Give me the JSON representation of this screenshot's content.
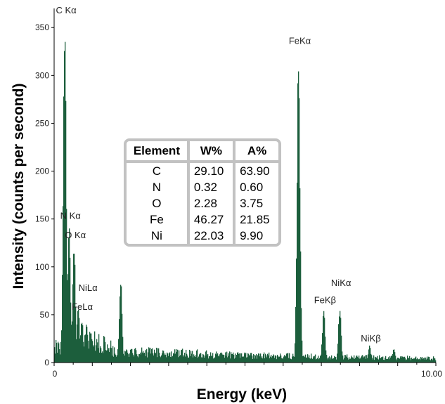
{
  "chart_data": {
    "type": "bar",
    "xlabel": "Energy (keV)",
    "ylabel": "Intensity (counts per second)",
    "xlim": [
      0,
      10
    ],
    "ylim": [
      0,
      370
    ],
    "x_ticks": [
      "0",
      "10.00"
    ],
    "y_ticks": [
      0,
      50,
      100,
      150,
      200,
      250,
      300,
      350
    ],
    "bar_color": "#1c5e3c",
    "background_peaks": [
      {
        "x": 0.277,
        "y": 365
      },
      {
        "x": 0.39,
        "y": 150
      },
      {
        "x": 0.52,
        "y": 130
      },
      {
        "x": 0.63,
        "y": 60
      },
      {
        "x": 0.72,
        "y": 48
      },
      {
        "x": 0.85,
        "y": 40
      },
      {
        "x": 1.74,
        "y": 95
      },
      {
        "x": 6.4,
        "y": 333
      },
      {
        "x": 7.06,
        "y": 60
      },
      {
        "x": 7.48,
        "y": 60
      },
      {
        "x": 8.26,
        "y": 18
      },
      {
        "x": 8.9,
        "y": 15
      }
    ],
    "annotations": [
      {
        "label": "C Kα",
        "x": 0.277,
        "y": 365
      },
      {
        "label": "N Kα",
        "x": 0.39,
        "y": 150
      },
      {
        "label": "O Kα",
        "x": 0.52,
        "y": 130
      },
      {
        "label": "NiLα",
        "x": 0.85,
        "y": 75
      },
      {
        "label": "FeLα",
        "x": 0.7,
        "y": 55
      },
      {
        "label": "FeKα",
        "x": 6.4,
        "y": 333
      },
      {
        "label": "FeKβ",
        "x": 7.06,
        "y": 62
      },
      {
        "label": "NiKα",
        "x": 7.48,
        "y": 80
      },
      {
        "label": "NiKβ",
        "x": 8.26,
        "y": 22
      }
    ]
  },
  "composition_table": {
    "headers": [
      "Element",
      "W%",
      "A%"
    ],
    "rows": [
      [
        "C",
        "29.10",
        "63.90"
      ],
      [
        "N",
        "0.32",
        "0.60"
      ],
      [
        "O",
        "2.28",
        "3.75"
      ],
      [
        "Fe",
        "46.27",
        "21.85"
      ],
      [
        "Ni",
        "22.03",
        "9.90"
      ]
    ]
  }
}
